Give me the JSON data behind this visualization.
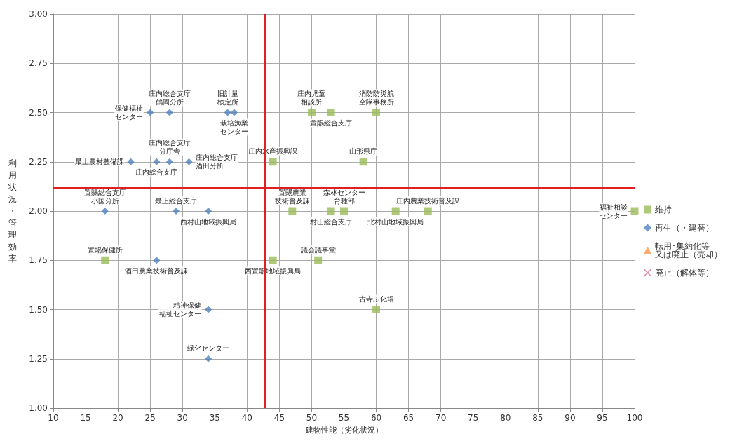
{
  "chart_data": {
    "type": "scatter",
    "xlabel": "建物性能（劣化状況）",
    "ylabel": "利用状況・管理効率",
    "xlim": [
      10,
      100
    ],
    "xticks": [
      10,
      15,
      20,
      25,
      30,
      35,
      40,
      45,
      50,
      55,
      60,
      65,
      70,
      75,
      80,
      85,
      90,
      95,
      100
    ],
    "ylim": [
      1,
      3
    ],
    "yticks": [
      {
        "value": 1,
        "label": "1.00"
      },
      {
        "value": 1.25,
        "label": "1.25"
      },
      {
        "value": 1.5,
        "label": "1.50"
      },
      {
        "value": 1.75,
        "label": "1.75"
      },
      {
        "value": 2,
        "label": "2.00"
      },
      {
        "value": 2.25,
        "label": "2.25"
      },
      {
        "value": 2.5,
        "label": "2.50"
      },
      {
        "value": 2.75,
        "label": "2.75"
      },
      {
        "value": 3,
        "label": "3.00"
      }
    ],
    "grid": true,
    "legend": "right",
    "series": [
      {
        "name": "維持",
        "color": "#9bbb59",
        "marker": "square",
        "x": [
          44,
          50,
          53,
          60,
          58,
          47,
          55,
          53,
          68,
          63,
          100,
          51,
          44,
          60,
          18
        ],
        "values": [
          2.25,
          2.5,
          2.5,
          2.5,
          2.25,
          2,
          2,
          2,
          2,
          2,
          2,
          1.75,
          1.75,
          1.5,
          1.75
        ]
      },
      {
        "name": "再生（・建替）",
        "color": "#4f81bd",
        "marker": "diamond",
        "x": [
          25,
          28,
          37,
          38,
          22,
          28,
          26,
          31,
          18,
          29,
          34,
          26,
          34,
          34
        ],
        "values": [
          2.5,
          2.5,
          2.5,
          2.5,
          2.25,
          2.25,
          2.25,
          2.25,
          2,
          2,
          2,
          1.75,
          1.5,
          1.25
        ]
      },
      {
        "name": "転用･集約化等又は廃止（売却）",
        "color": "#f79646",
        "marker": "triangle"
      },
      {
        "name": "廃止（解体等）",
        "color": "#d0708a",
        "marker": "cross"
      }
    ],
    "ref_lines": [
      {
        "axis": "x",
        "value": 42.8,
        "color": "#e02020"
      },
      {
        "axis": "y",
        "value": 2.12,
        "color": "#e02020"
      }
    ],
    "annotations": [
      {
        "text": "保健福祉センター",
        "x": 25,
        "y": 2.5
      },
      {
        "text": "庄内総合支庁鶴岡分所",
        "x": 28,
        "y": 2.5
      },
      {
        "text": "旧計量検定所",
        "x": 37,
        "y": 2.5
      },
      {
        "text": "栽培漁業センター",
        "x": 38,
        "y": 2.5
      },
      {
        "text": "最上農村整備課",
        "x": 22,
        "y": 2.25
      },
      {
        "text": "庄内総合支庁分庁舎",
        "x": 28,
        "y": 2.25
      },
      {
        "text": "庄内総合支庁",
        "x": 26,
        "y": 2.25
      },
      {
        "text": "庄内総合支庁酒田分所",
        "x": 31,
        "y": 2.25
      },
      {
        "text": "置賜総合支庁小国分所",
        "x": 18,
        "y": 2
      },
      {
        "text": "最上総合支庁",
        "x": 29,
        "y": 2
      },
      {
        "text": "西村山地域振興局",
        "x": 34,
        "y": 2
      },
      {
        "text": "置賜保健所",
        "x": 18,
        "y": 1.75
      },
      {
        "text": "酒田農業技術普及課",
        "x": 26,
        "y": 1.75
      },
      {
        "text": "精神保健福祉センター",
        "x": 34,
        "y": 1.5
      },
      {
        "text": "緑化センター",
        "x": 34,
        "y": 1.25
      },
      {
        "text": "庄内水産振興課",
        "x": 44,
        "y": 2.25
      },
      {
        "text": "庄内児童相談所",
        "x": 50,
        "y": 2.5
      },
      {
        "text": "置賜総合支庁",
        "x": 53,
        "y": 2.5
      },
      {
        "text": "消防防災航空隊事務所",
        "x": 60,
        "y": 2.5
      },
      {
        "text": "山形県庁",
        "x": 58,
        "y": 2.25
      },
      {
        "text": "置賜農業技術普及課",
        "x": 47,
        "y": 2
      },
      {
        "text": "森林センター育種部",
        "x": 55,
        "y": 2
      },
      {
        "text": "村山総合支庁",
        "x": 53,
        "y": 2
      },
      {
        "text": "庄内農業技術普及課",
        "x": 68,
        "y": 2
      },
      {
        "text": "北村山地域振興局",
        "x": 63,
        "y": 2
      },
      {
        "text": "福祉相談センター",
        "x": 100,
        "y": 2
      },
      {
        "text": "議会議事堂",
        "x": 51,
        "y": 1.75
      },
      {
        "text": "西置賜地域振興局",
        "x": 44,
        "y": 1.75
      },
      {
        "text": "古寺ふ化場",
        "x": 60,
        "y": 1.5
      }
    ]
  }
}
